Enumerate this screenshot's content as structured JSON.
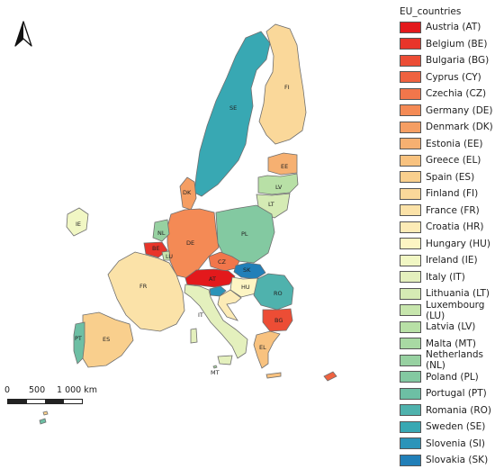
{
  "legend": {
    "title": "EU_countries",
    "items": [
      {
        "label": "Austria (AT)",
        "color": "#e3191c"
      },
      {
        "label": "Belgium (BE)",
        "color": "#e8352a"
      },
      {
        "label": "Bulgaria (BG)",
        "color": "#ec4d35"
      },
      {
        "label": "Cyprus (CY)",
        "color": "#ef6240"
      },
      {
        "label": "Czechia (CZ)",
        "color": "#f1764b"
      },
      {
        "label": "Germany (DE)",
        "color": "#f48a55"
      },
      {
        "label": "Denmark (DK)",
        "color": "#f59e63"
      },
      {
        "label": "Estonia (EE)",
        "color": "#f6b071"
      },
      {
        "label": "Greece (EL)",
        "color": "#f8c27f"
      },
      {
        "label": "Spain (ES)",
        "color": "#f9cf8d"
      },
      {
        "label": "Finland (FI)",
        "color": "#fad89a"
      },
      {
        "label": "France (FR)",
        "color": "#fbe2a8"
      },
      {
        "label": "Croatia (HR)",
        "color": "#fcebb6"
      },
      {
        "label": "Hungary (HU)",
        "color": "#fdf5c3"
      },
      {
        "label": "Ireland (IE)",
        "color": "#f1f7c4"
      },
      {
        "label": "Italy (IT)",
        "color": "#e4f0bd"
      },
      {
        "label": "Lithuania (LT)",
        "color": "#d5ebb4"
      },
      {
        "label": "Luxembourg (LU)",
        "color": "#c7e6ad"
      },
      {
        "label": "Latvia (LV)",
        "color": "#b8e0a6"
      },
      {
        "label": "Malta (MT)",
        "color": "#a8d9a3"
      },
      {
        "label": "Netherlands (NL)",
        "color": "#97d1a1"
      },
      {
        "label": "Poland (PL)",
        "color": "#83c9a1"
      },
      {
        "label": "Portugal (PT)",
        "color": "#6dbfa4"
      },
      {
        "label": "Romania (RO)",
        "color": "#4fb2ad"
      },
      {
        "label": "Sweden (SE)",
        "color": "#38a8b3"
      },
      {
        "label": "Slovenia (SI)",
        "color": "#2b94b9"
      },
      {
        "label": "Slovakia (SK)",
        "color": "#217fb8"
      }
    ]
  },
  "scale": {
    "labels": [
      "0",
      "500",
      "1 000 km"
    ]
  },
  "labels": {
    "AT": "AT",
    "BE": "BE",
    "BG": "BG",
    "CZ": "CZ",
    "DE": "DE",
    "DK": "DK",
    "EE": "EE",
    "EL": "EL",
    "ES": "ES",
    "FI": "FI",
    "FR": "FR",
    "HU": "HU",
    "IE": "IE",
    "IT": "IT",
    "LT": "LT",
    "LU": "LU",
    "LV": "LV",
    "MT": "MT",
    "NL": "NL",
    "PL": "PL",
    "PT": "PT",
    "RO": "RO",
    "SE": "SE",
    "SK": "SK"
  },
  "colors": {
    "AT": "#e3191c",
    "BE": "#e8352a",
    "BG": "#ec4d35",
    "CY": "#ef6240",
    "CZ": "#f1764b",
    "DE": "#f48a55",
    "DK": "#f59e63",
    "EE": "#f6b071",
    "EL": "#f8c27f",
    "ES": "#f9cf8d",
    "FI": "#fad89a",
    "FR": "#fbe2a8",
    "HR": "#fcebb6",
    "HU": "#fdf5c3",
    "IE": "#f1f7c4",
    "IT": "#e4f0bd",
    "LT": "#d5ebb4",
    "LU": "#c7e6ad",
    "LV": "#b8e0a6",
    "MT": "#a8d9a3",
    "NL": "#97d1a1",
    "PL": "#83c9a1",
    "PT": "#6dbfa4",
    "RO": "#4fb2ad",
    "SE": "#38a8b3",
    "SI": "#2b94b9",
    "SK": "#217fb8"
  },
  "north_arrow_icon": "north-arrow-icon"
}
